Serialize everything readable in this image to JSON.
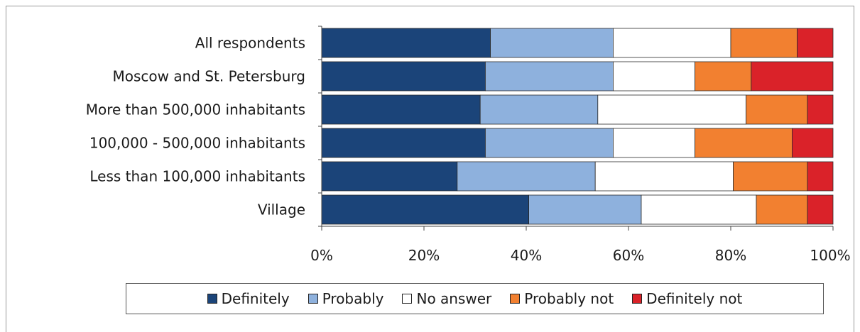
{
  "chart_data": {
    "type": "bar",
    "orientation": "horizontal",
    "stacked": true,
    "categories": [
      "All respondents",
      "Moscow and St. Petersburg",
      "More than 500,000 inhabitants",
      "100,000 - 500,000 inhabitants",
      "Less than 100,000 inhabitants",
      "Village"
    ],
    "series": [
      {
        "name": "Definitely",
        "color": "#1b4479",
        "values": [
          33,
          32,
          31,
          32,
          26.5,
          40.5
        ]
      },
      {
        "name": "Probably",
        "color": "#8eb1dd",
        "values": [
          24,
          25,
          23,
          25,
          27,
          22
        ]
      },
      {
        "name": "No answer",
        "color": "#ffffff",
        "values": [
          23,
          16,
          29,
          16,
          27,
          22.5
        ]
      },
      {
        "name": "Probably not",
        "color": "#f28030",
        "values": [
          13,
          11,
          12,
          19,
          14.5,
          10
        ]
      },
      {
        "name": "Definitely not",
        "color": "#da2229",
        "values": [
          7,
          16,
          5,
          8,
          5,
          5
        ]
      }
    ],
    "xlim": [
      0,
      100
    ],
    "xticks": [
      "0%",
      "20%",
      "40%",
      "60%",
      "80%",
      "100%"
    ],
    "title": "",
    "xlabel": "",
    "ylabel": "",
    "grid": false,
    "legend_position": "bottom"
  }
}
